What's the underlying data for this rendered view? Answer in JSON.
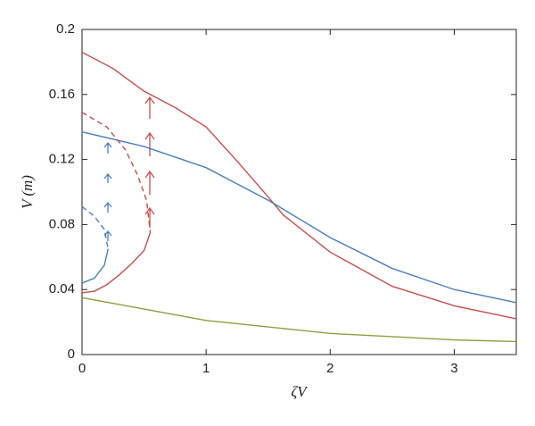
{
  "chart_data": {
    "type": "line",
    "xlabel": "ζV",
    "ylabel": "V (m)",
    "xlim": [
      0,
      3.5
    ],
    "ylim": [
      0,
      0.2
    ],
    "xticks": [
      0,
      1,
      2,
      3
    ],
    "yticks": [
      0,
      0.04,
      0.08,
      0.12,
      0.16,
      0.2
    ],
    "series": [
      {
        "color": "#c0504d",
        "dashed": false,
        "x": [
          0,
          0.25,
          0.5,
          0.75,
          1,
          1.25,
          1.5,
          1.62,
          2,
          2.5,
          3,
          3.5
        ],
        "values": [
          0.186,
          0.176,
          0.162,
          0.152,
          0.14,
          0.119,
          0.097,
          0.086,
          0.063,
          0.042,
          0.03,
          0.022
        ]
      },
      {
        "color": "#4a7ebb",
        "dashed": false,
        "x": [
          0,
          0.5,
          1,
          1.5,
          2,
          2.5,
          3,
          3.5
        ],
        "values": [
          0.137,
          0.128,
          0.115,
          0.095,
          0.072,
          0.053,
          0.04,
          0.032
        ]
      },
      {
        "color": "#8aa040",
        "dashed": false,
        "x": [
          0,
          0.5,
          1,
          1.5,
          2,
          2.5,
          3,
          3.5
        ],
        "values": [
          0.035,
          0.028,
          0.021,
          0.017,
          0.013,
          0.011,
          0.009,
          0.008
        ]
      },
      {
        "color": "#c0504d",
        "dashed": false,
        "x": [
          0,
          0.1,
          0.2,
          0.3,
          0.4,
          0.5,
          0.55
        ],
        "values": [
          0.038,
          0.039,
          0.043,
          0.049,
          0.056,
          0.064,
          0.075
        ]
      },
      {
        "color": "#c0504d",
        "dashed": true,
        "x": [
          0,
          0.2,
          0.35,
          0.45,
          0.52,
          0.55
        ],
        "values": [
          0.149,
          0.14,
          0.126,
          0.11,
          0.095,
          0.075
        ]
      },
      {
        "color": "#4a7ebb",
        "dashed": false,
        "x": [
          0,
          0.1,
          0.18,
          0.21
        ],
        "values": [
          0.044,
          0.047,
          0.055,
          0.065
        ]
      },
      {
        "color": "#4a7ebb",
        "dashed": true,
        "x": [
          0,
          0.1,
          0.18,
          0.21
        ],
        "values": [
          0.091,
          0.085,
          0.077,
          0.065
        ]
      }
    ]
  }
}
